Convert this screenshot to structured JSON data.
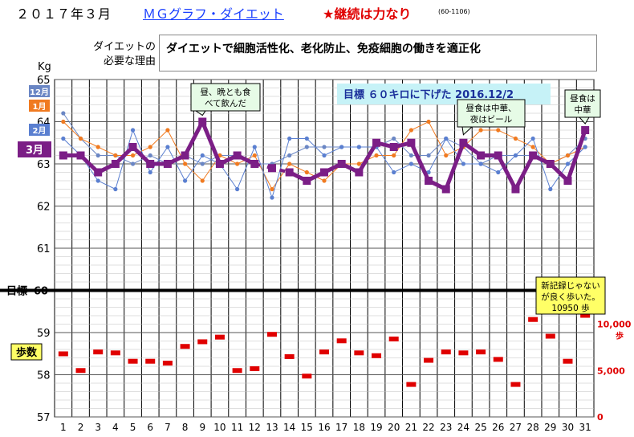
{
  "header": {
    "month_title": "２０１７年３月",
    "graph_title": "ＭＧグラフ・ダイエット",
    "slogan": "★継続は力なり",
    "code": "(60-1106)"
  },
  "reason": {
    "label_line1": "ダイエットの",
    "label_line2": "必要な理由",
    "text": "ダイエットで細胞活性化、老化防止、免疫細胞の働きを適正化"
  },
  "chart_data": {
    "type": "line",
    "y_unit": "Kg",
    "ylim": [
      57,
      65
    ],
    "y_ticks": [
      57,
      58,
      59,
      60,
      61,
      62,
      63,
      64,
      65
    ],
    "x": [
      1,
      2,
      3,
      4,
      5,
      6,
      7,
      8,
      9,
      10,
      11,
      12,
      13,
      14,
      15,
      16,
      17,
      18,
      19,
      20,
      21,
      22,
      23,
      24,
      25,
      26,
      27,
      28,
      29,
      30,
      31
    ],
    "target_weight": 60,
    "target_label": "目標",
    "goal_note": "目標 ６０キロに下げた 2016.12/2",
    "series": [
      {
        "name": "3月",
        "color": "#7b1e86",
        "values": [
          63.2,
          63.2,
          62.8,
          63.0,
          63.4,
          63.0,
          63.0,
          63.2,
          64.0,
          63.0,
          63.2,
          63.0,
          62.9,
          62.8,
          62.6,
          62.8,
          63.0,
          62.8,
          63.5,
          63.4,
          63.5,
          62.6,
          62.4,
          63.5,
          63.2,
          63.2,
          62.4,
          63.2,
          63.0,
          62.6,
          63.8
        ]
      },
      {
        "name": "2月",
        "color": "#5a7fd0",
        "values": [
          63.6,
          63.2,
          62.6,
          62.4,
          63.8,
          62.8,
          63.4,
          62.6,
          63.2,
          63.0,
          62.4,
          63.4,
          62.2,
          63.6,
          63.6,
          63.2,
          63.4,
          63.4,
          63.4,
          62.8,
          63.0,
          62.8,
          63.6,
          63.0,
          63.0,
          62.8,
          63.2,
          63.6,
          62.4,
          63.0,
          63.4
        ]
      },
      {
        "name": "1月",
        "color": "#f07a20",
        "values": [
          64.0,
          63.6,
          63.4,
          63.2,
          63.2,
          63.4,
          63.8,
          63.0,
          62.6,
          63.2,
          63.0,
          63.2,
          62.4,
          63.0,
          62.8,
          62.6,
          63.0,
          63.0,
          63.2,
          63.2,
          63.8,
          64.0,
          63.2,
          63.4,
          63.8,
          63.8,
          63.6,
          63.4,
          63.0,
          63.2,
          63.4
        ]
      },
      {
        "name": "12月",
        "color": "#6a86c4",
        "values": [
          64.2,
          63.6,
          63.2,
          63.2,
          63.0,
          63.2,
          63.0,
          63.2,
          63.0,
          63.2,
          63.2,
          63.0,
          63.0,
          63.2,
          63.4,
          63.4,
          63.4,
          63.4,
          63.4,
          63.6,
          63.2,
          63.2,
          63.6,
          63.4,
          63.0,
          63.2,
          63.2,
          63.2,
          63.0,
          63.2,
          63.6
        ]
      }
    ],
    "steps_label": "歩数",
    "steps_axis_ticks": [
      "10,000",
      "5,000",
      "0"
    ],
    "steps_unit": "歩",
    "steps": [
      6800,
      5000,
      7000,
      6900,
      6000,
      6000,
      5800,
      7600,
      8100,
      8600,
      5000,
      5200,
      8900,
      6500,
      4400,
      7000,
      8200,
      6900,
      6600,
      8400,
      3500,
      6100,
      7000,
      6900,
      7000,
      6200,
      3500,
      10500,
      8700,
      6000,
      10950
    ],
    "annotations": [
      {
        "id": "note-day9",
        "day": 9,
        "text_line1": "昼、晩とも食",
        "text_line2": "べて飲んだ"
      },
      {
        "id": "note-day24",
        "day": 24,
        "text_line1": "昼食は中華、",
        "text_line2": "夜はビール"
      },
      {
        "id": "note-day31",
        "day": 31,
        "text_line1": "昼食は",
        "text_line2": "中華"
      },
      {
        "id": "note-steps",
        "day": 31,
        "text_line1": "新記録じゃない",
        "text_line2": "が良く歩いた。",
        "text_line3": "10950 歩"
      }
    ]
  }
}
